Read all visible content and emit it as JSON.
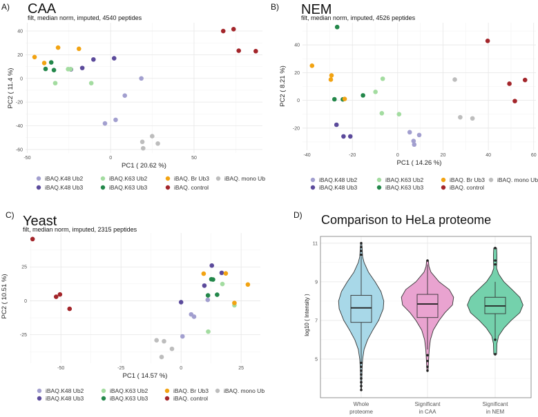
{
  "legend_items": [
    {
      "key": "k48ub2",
      "label": "iBAQ.K48 Ub2",
      "color": "#a29fcf"
    },
    {
      "key": "k48ub3",
      "label": "iBAQ.K48 Ub3",
      "color": "#5b4a9b"
    },
    {
      "key": "k63ub2",
      "label": "iBAQ.K63 Ub2",
      "color": "#a3dca0"
    },
    {
      "key": "k63ub3",
      "label": "iBAQ.K63 Ub3",
      "color": "#23874a"
    },
    {
      "key": "brub3",
      "label": "iBAQ. Br Ub3",
      "color": "#f2a312"
    },
    {
      "key": "control",
      "label": "iBAQ. control",
      "color": "#a3252a"
    },
    {
      "key": "monoub",
      "label": "iBAQ. mono Ub",
      "color": "#bdbdbd"
    }
  ],
  "chart_data": [
    {
      "panel_label": "A)",
      "type": "scatter",
      "title": "CAA",
      "subtitle": "filt, median norm, imputed, 4540 peptides",
      "xlabel": "PC1 ( 20.62 %)",
      "ylabel": "PC2 ( 11.4 %)",
      "xlim": [
        -51,
        91
      ],
      "ylim": [
        -63,
        47
      ],
      "xticks": [
        -50,
        0,
        50
      ],
      "yticks": [
        -60,
        -40,
        -20,
        0,
        20,
        40
      ],
      "grid": true,
      "legend": "bottom",
      "series": {
        "k48ub2": [
          [
            18.4,
            0
          ],
          [
            8.5,
            -14.5
          ],
          [
            -3.4,
            -38
          ],
          [
            3,
            -35
          ]
        ],
        "k48ub3": [
          [
            -23.8,
            7.6
          ],
          [
            -17,
            8.8
          ],
          [
            -10.3,
            16
          ],
          [
            2.1,
            17
          ]
        ],
        "k63ub2": [
          [
            -25.5,
            7.8
          ],
          [
            -24,
            7.8
          ],
          [
            -33.2,
            -4
          ],
          [
            -11.6,
            -4
          ]
        ],
        "k63ub3": [
          [
            -39,
            8
          ],
          [
            -35.6,
            13.5
          ],
          [
            -34,
            7
          ]
        ],
        "brub3": [
          [
            -45.6,
            18
          ],
          [
            -39.8,
            13
          ],
          [
            -31.5,
            26
          ],
          [
            -19,
            25
          ]
        ],
        "monoub": [
          [
            24.9,
            -48.8
          ],
          [
            19,
            -53.6
          ],
          [
            19.5,
            -59
          ],
          [
            28.3,
            -55
          ]
        ],
        "control": [
          [
            67.5,
            40
          ],
          [
            73.7,
            41.6
          ],
          [
            76.8,
            23.4
          ],
          [
            87,
            23
          ]
        ]
      }
    },
    {
      "panel_label": "B)",
      "type": "scatter",
      "title": "NEM",
      "subtitle": "filt, median norm, imputed, 4526 peptides",
      "xlabel": "PC1 ( 14.26 %)",
      "ylabel": "PC2 ( 8.21 %)",
      "xlim": [
        -42,
        61
      ],
      "ylim": [
        -36,
        56
      ],
      "xticks": [
        -40,
        -20,
        0,
        20,
        40,
        60
      ],
      "yticks": [
        -20,
        0,
        20,
        40
      ],
      "grid": true,
      "legend": "bottom",
      "series": {
        "k48ub2": [
          [
            5.3,
            -23
          ],
          [
            9.5,
            -25
          ],
          [
            7,
            -29.3
          ],
          [
            7.3,
            -31.9
          ]
        ],
        "k48ub3": [
          [
            -27,
            -17.6
          ],
          [
            -23.9,
            -26
          ],
          [
            -20.9,
            -26
          ]
        ],
        "k63ub2": [
          [
            -6.6,
            15.6
          ],
          [
            -9.8,
            6.1
          ],
          [
            -7,
            -9.3
          ],
          [
            0.6,
            -10
          ]
        ],
        "k63ub3": [
          [
            -26.7,
            52.9
          ],
          [
            -27.9,
            0.8
          ],
          [
            -24.2,
            0.7
          ],
          [
            -15.3,
            3.6
          ]
        ],
        "brub3": [
          [
            -37.8,
            25
          ],
          [
            -29.2,
            18
          ],
          [
            -29.5,
            15
          ],
          [
            -23.4,
            1
          ]
        ],
        "monoub": [
          [
            25.2,
            15
          ],
          [
            27.6,
            -12.2
          ],
          [
            33,
            -13
          ]
        ],
        "control": [
          [
            39.7,
            42.9
          ],
          [
            49.3,
            12
          ],
          [
            56.2,
            14.7
          ],
          [
            51.7,
            -0.5
          ]
        ]
      }
    },
    {
      "panel_label": "C)",
      "type": "scatter",
      "title": "Yeast",
      "subtitle": "filt, median norm, imputed, 2315 peptides",
      "xlabel": "PC1 ( 14.57 %)",
      "ylabel": "PC2 ( 10.51 %)",
      "xlim": [
        -63,
        33
      ],
      "ylim": [
        -46,
        50
      ],
      "xticks": [
        -50,
        -25,
        0,
        25
      ],
      "yticks": [
        -25,
        0,
        25
      ],
      "grid": true,
      "legend": "bottom",
      "series": {
        "k48ub2": [
          [
            11.1,
            0.7
          ],
          [
            4.2,
            -10
          ],
          [
            5.4,
            -11.7
          ],
          [
            0.6,
            -26.2
          ]
        ],
        "k48ub3": [
          [
            0,
            -1
          ],
          [
            12.8,
            26
          ],
          [
            16.9,
            20.6
          ],
          [
            9.7,
            11.2
          ]
        ],
        "k63ub2": [
          [
            17.2,
            12.4
          ],
          [
            22.2,
            -3.3
          ],
          [
            11.3,
            -22.7
          ]
        ],
        "k63ub3": [
          [
            12.6,
            15.9
          ],
          [
            13.3,
            15.7
          ],
          [
            11.2,
            4
          ],
          [
            15,
            4.5
          ]
        ],
        "brub3": [
          [
            9.4,
            20
          ],
          [
            18.6,
            20.2
          ],
          [
            27.8,
            12
          ],
          [
            22.2,
            -1.6
          ]
        ],
        "monoub": [
          [
            -10.2,
            -29.1
          ],
          [
            -7.1,
            -29.8
          ],
          [
            -3.8,
            -35.4
          ],
          [
            -8.1,
            -41.4
          ]
        ],
        "control": [
          [
            -61.8,
            45.5
          ],
          [
            -52,
            3
          ],
          [
            -50.4,
            4.7
          ],
          [
            -46.4,
            -5.9
          ]
        ]
      }
    },
    {
      "panel_label": "D)",
      "type": "violin",
      "title": "Comparison to HeLa proteome",
      "xlabel": "",
      "ylabel": "log10 ( Intensity )",
      "ylim": [
        3,
        11.35
      ],
      "yticks": [
        5,
        7,
        9,
        11
      ],
      "grid": true,
      "categories": [
        {
          "label_lines": [
            "Whole",
            "proteome"
          ],
          "color": "#a8d8e8",
          "box": {
            "whisker_low": 4.85,
            "q1": 6.9,
            "median": 7.65,
            "q3": 8.3,
            "whisker_high": 10.3
          },
          "outliers": [
            3.4,
            3.6,
            3.8,
            4.0,
            4.2,
            4.4,
            4.6,
            4.8,
            10.4,
            10.6,
            10.8,
            11.0
          ],
          "density": [
            [
              11,
              0.02
            ],
            [
              10.3,
              0.05
            ],
            [
              10,
              0.1
            ],
            [
              9.5,
              0.25
            ],
            [
              9,
              0.48
            ],
            [
              8.5,
              0.68
            ],
            [
              8,
              0.78
            ],
            [
              7.6,
              0.76
            ],
            [
              7,
              0.6
            ],
            [
              6.5,
              0.4
            ],
            [
              6,
              0.22
            ],
            [
              5.5,
              0.1
            ],
            [
              5,
              0.05
            ],
            [
              4.5,
              0.03
            ],
            [
              3.4,
              0.01
            ]
          ]
        },
        {
          "label_lines": [
            "Significant",
            "in CAA"
          ],
          "color": "#e9a3d0",
          "box": {
            "whisker_low": 5.5,
            "q1": 7.15,
            "median": 7.85,
            "q3": 8.35,
            "whisker_high": 9.9
          },
          "outliers": [
            4.4,
            4.6,
            4.9,
            5.2,
            10.1
          ],
          "density": [
            [
              10.1,
              0.03
            ],
            [
              9.8,
              0.05
            ],
            [
              9.5,
              0.12
            ],
            [
              9,
              0.4
            ],
            [
              8.6,
              0.75
            ],
            [
              8.2,
              0.9
            ],
            [
              7.8,
              0.86
            ],
            [
              7.4,
              0.6
            ],
            [
              7,
              0.4
            ],
            [
              6.5,
              0.2
            ],
            [
              6,
              0.1
            ],
            [
              5.5,
              0.06
            ],
            [
              5,
              0.04
            ],
            [
              4.4,
              0.02
            ]
          ]
        },
        {
          "label_lines": [
            "Significant",
            "in NEM"
          ],
          "color": "#74d1ac",
          "box": {
            "whisker_low": 6.0,
            "q1": 7.35,
            "median": 7.75,
            "q3": 8.2,
            "whisker_high": 9.0
          },
          "outliers": [
            5.25,
            6.0,
            9.9,
            10.1,
            10.75
          ],
          "density": [
            [
              10.75,
              0.05
            ],
            [
              10.4,
              0.06
            ],
            [
              10.1,
              0.06
            ],
            [
              9.7,
              0.05
            ],
            [
              9.4,
              0.12
            ],
            [
              9,
              0.3
            ],
            [
              8.6,
              0.58
            ],
            [
              8.2,
              0.85
            ],
            [
              7.8,
              0.96
            ],
            [
              7.4,
              0.85
            ],
            [
              7,
              0.55
            ],
            [
              6.6,
              0.3
            ],
            [
              6.2,
              0.12
            ],
            [
              5.8,
              0.06
            ],
            [
              5.25,
              0.05
            ]
          ]
        }
      ]
    }
  ]
}
